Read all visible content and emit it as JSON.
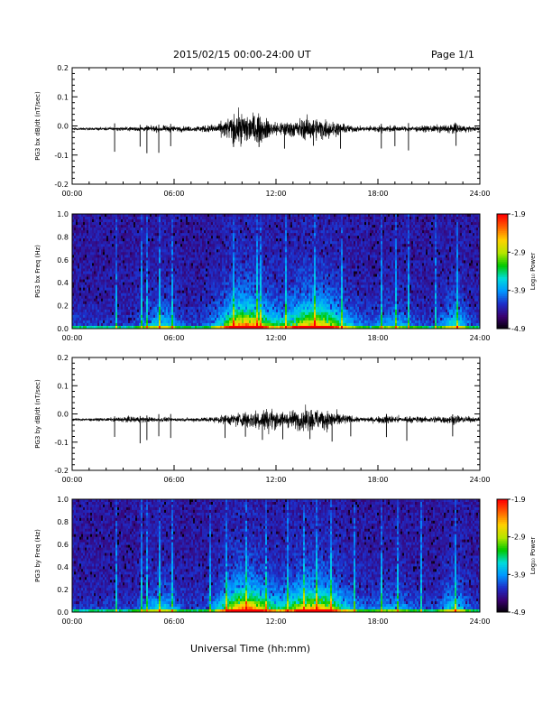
{
  "header": {
    "title": "2015/02/15  00:00-24:00 UT",
    "page": "Page 1/1"
  },
  "footer": {
    "xlabel": "Universal Time (hh:mm)"
  },
  "colors": {
    "trace": "#000000",
    "frame": "#000000",
    "background": "#ffffff"
  },
  "colorbar": {
    "label": "Log₁₀ Power",
    "ticks": [
      "-1.9",
      "-2.9",
      "-3.9",
      "-4.9"
    ],
    "range": [
      -4.9,
      -1.9
    ],
    "colormap": [
      "#000000",
      "#3a006e",
      "#1e2dc8",
      "#0096ff",
      "#00dcdc",
      "#00c800",
      "#b4e600",
      "#ffd200",
      "#ff6400",
      "#ff0000"
    ]
  },
  "chart_data": [
    {
      "type": "line",
      "ylabel": "PG3 bx dB/dt (nT/sec)",
      "xlim": [
        0,
        24
      ],
      "ylim": [
        -0.2,
        0.2
      ],
      "xticks": [
        "00:00",
        "06:00",
        "12:00",
        "18:00",
        "24:00"
      ],
      "yticks": [
        "0.2",
        "0.1",
        "0.0",
        "-0.1",
        "-0.2"
      ],
      "baseline": -0.01,
      "amplitude_envelope": [
        [
          0,
          0.003
        ],
        [
          2,
          0.004
        ],
        [
          4,
          0.006
        ],
        [
          5.5,
          0.008
        ],
        [
          7,
          0.006
        ],
        [
          8.5,
          0.012
        ],
        [
          9.5,
          0.035
        ],
        [
          10.3,
          0.045
        ],
        [
          11,
          0.035
        ],
        [
          12,
          0.018
        ],
        [
          13,
          0.022
        ],
        [
          14,
          0.03
        ],
        [
          15,
          0.025
        ],
        [
          16,
          0.012
        ],
        [
          17,
          0.006
        ],
        [
          18.5,
          0.009
        ],
        [
          19.5,
          0.006
        ],
        [
          21,
          0.008
        ],
        [
          22.5,
          0.012
        ],
        [
          24,
          0.004
        ]
      ],
      "spikes": [
        2.5,
        4.0,
        4.4,
        5.1,
        5.8,
        9.5,
        11.0,
        12.5,
        14.2,
        15.8,
        18.2,
        19.0,
        19.8,
        22.6
      ]
    },
    {
      "type": "heatmap",
      "ylabel": "PG3 bx Freq (Hz)",
      "xlim": [
        0,
        24
      ],
      "ylim": [
        0,
        1.0
      ],
      "xticks": [
        "00:00",
        "06:00",
        "12:00",
        "18:00",
        "24:00"
      ],
      "yticks": [
        "1.0",
        "0.8",
        "0.6",
        "0.4",
        "0.2",
        "0.0"
      ],
      "zlabel": "Log₁₀ Power",
      "zlim": [
        -4.9,
        -1.9
      ]
    },
    {
      "type": "line",
      "ylabel": "PG3 by dB/dt (nT/sec)",
      "xlim": [
        0,
        24
      ],
      "ylim": [
        -0.2,
        0.2
      ],
      "xticks": [
        "00:00",
        "06:00",
        "12:00",
        "18:00",
        "24:00"
      ],
      "yticks": [
        "0.2",
        "0.1",
        "0.0",
        "-0.1",
        "-0.2"
      ],
      "baseline": -0.02,
      "amplitude_envelope": [
        [
          0,
          0.003
        ],
        [
          2,
          0.004
        ],
        [
          3.5,
          0.008
        ],
        [
          5,
          0.006
        ],
        [
          6.5,
          0.004
        ],
        [
          8.5,
          0.008
        ],
        [
          9.5,
          0.015
        ],
        [
          10.5,
          0.025
        ],
        [
          11.5,
          0.03
        ],
        [
          12.5,
          0.02
        ],
        [
          13.5,
          0.028
        ],
        [
          14.5,
          0.03
        ],
        [
          15.5,
          0.02
        ],
        [
          16.5,
          0.008
        ],
        [
          17.5,
          0.006
        ],
        [
          18.5,
          0.012
        ],
        [
          19.5,
          0.008
        ],
        [
          21,
          0.008
        ],
        [
          22.5,
          0.012
        ],
        [
          24,
          0.004
        ]
      ],
      "spikes": [
        2.5,
        4.0,
        4.4,
        5.1,
        5.8,
        9.0,
        10.2,
        11.2,
        12.4,
        14.0,
        15.3,
        16.4,
        18.5,
        19.7,
        22.4
      ]
    },
    {
      "type": "heatmap",
      "ylabel": "PG3 by Freq (Hz)",
      "xlim": [
        0,
        24
      ],
      "ylim": [
        0,
        1.0
      ],
      "xticks": [
        "00:00",
        "06:00",
        "12:00",
        "18:00",
        "24:00"
      ],
      "yticks": [
        "1.0",
        "0.8",
        "0.6",
        "0.4",
        "0.2",
        "0.0"
      ],
      "zlabel": "Log₁₀ Power",
      "zlim": [
        -4.9,
        -1.9
      ]
    }
  ]
}
